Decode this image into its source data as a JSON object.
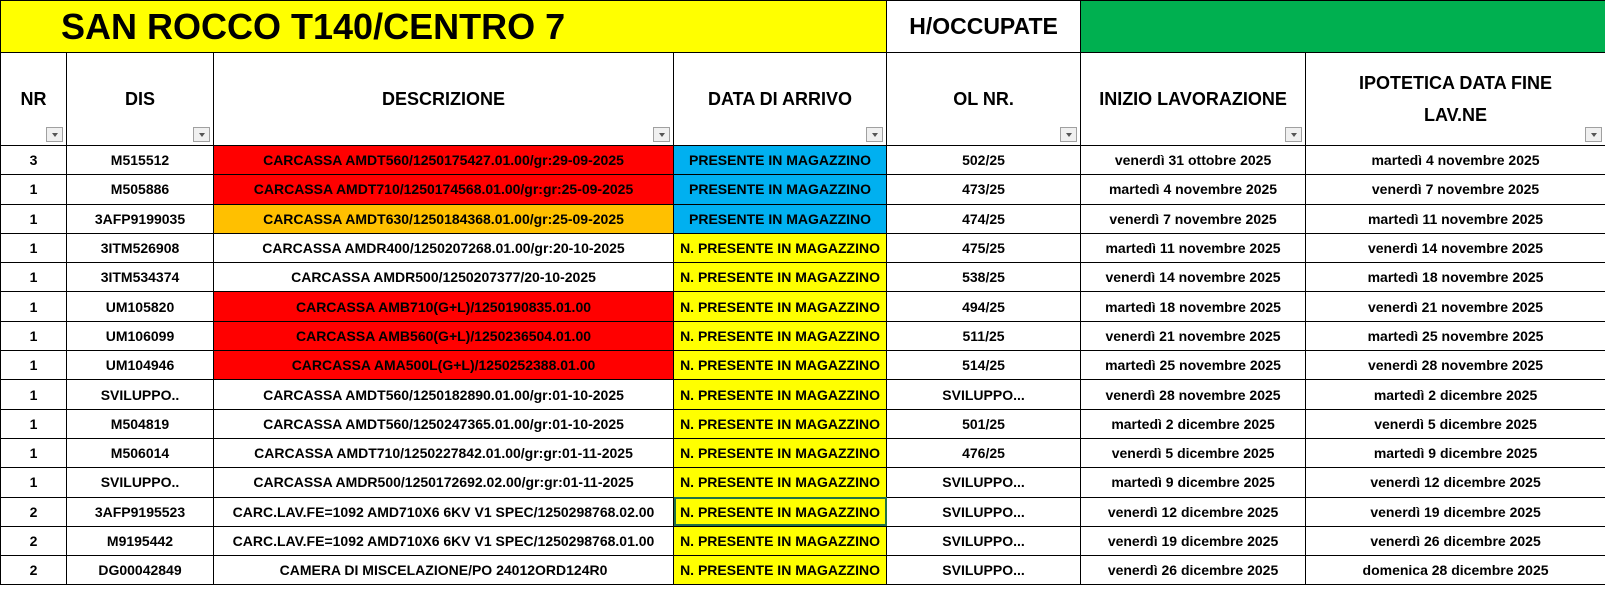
{
  "title": "SAN ROCCO T140/CENTRO 7",
  "occupate_label": "H/OCCUPATE",
  "colors": {
    "title_bg": "#ffff00",
    "occupate_bar": "#00b050",
    "red": "#ff0000",
    "orange": "#ffc000",
    "blue": "#00b0f0",
    "yellow": "#ffff00"
  },
  "headers": [
    "NR",
    "DIS",
    "DESCRIZIONE",
    "DATA DI ARRIVO",
    "OL NR.",
    "INIZIO LAVORAZIONE",
    "IPOTETICA DATA FINE LAV.NE"
  ],
  "rows": [
    {
      "nr": "3",
      "dis": "M515512",
      "desc": "CARCASSA AMDT560/1250175427.01.00/gr:29-09-2025",
      "desc_color": "red",
      "arrivo": "PRESENTE IN MAGAZZINO",
      "arrivo_color": "blue",
      "ol": "502/25",
      "inizio": "venerdì 31 ottobre 2025",
      "fine": "martedì 4 novembre 2025"
    },
    {
      "nr": "1",
      "dis": "M505886",
      "desc": "CARCASSA AMDT710/1250174568.01.00/gr:gr:25-09-2025",
      "desc_color": "red",
      "arrivo": "PRESENTE IN MAGAZZINO",
      "arrivo_color": "blue",
      "ol": "473/25",
      "inizio": "martedì 4 novembre 2025",
      "fine": "venerdì 7 novembre 2025"
    },
    {
      "nr": "1",
      "dis": "3AFP9199035",
      "desc": "CARCASSA AMDT630/1250184368.01.00/gr:25-09-2025",
      "desc_color": "orange",
      "arrivo": "PRESENTE IN MAGAZZINO",
      "arrivo_color": "blue",
      "ol": "474/25",
      "inizio": "venerdì 7 novembre 2025",
      "fine": "martedì 11 novembre 2025"
    },
    {
      "nr": "1",
      "dis": "3ITM526908",
      "desc": "CARCASSA AMDR400/1250207268.01.00/gr:20-10-2025",
      "desc_color": "",
      "arrivo": "N. PRESENTE IN MAGAZZINO",
      "arrivo_color": "yellow",
      "ol": "475/25",
      "inizio": "martedì 11 novembre 2025",
      "fine": "venerdì 14 novembre 2025"
    },
    {
      "nr": "1",
      "dis": "3ITM534374",
      "desc": "CARCASSA AMDR500/1250207377/20-10-2025",
      "desc_color": "",
      "arrivo": "N. PRESENTE IN MAGAZZINO",
      "arrivo_color": "yellow",
      "ol": "538/25",
      "inizio": "venerdì 14 novembre 2025",
      "fine": "martedì 18 novembre 2025"
    },
    {
      "nr": "1",
      "dis": "UM105820",
      "desc": "CARCASSA AMB710(G+L)/1250190835.01.00",
      "desc_color": "red",
      "arrivo": "N. PRESENTE IN MAGAZZINO",
      "arrivo_color": "yellow",
      "ol": "494/25",
      "inizio": "martedì 18 novembre 2025",
      "fine": "venerdì 21 novembre 2025"
    },
    {
      "nr": "1",
      "dis": "UM106099",
      "desc": "CARCASSA AMB560(G+L)/1250236504.01.00",
      "desc_color": "red",
      "arrivo": "N. PRESENTE IN MAGAZZINO",
      "arrivo_color": "yellow",
      "ol": "511/25",
      "inizio": "venerdì 21 novembre 2025",
      "fine": "martedì 25 novembre 2025"
    },
    {
      "nr": "1",
      "dis": "UM104946",
      "desc": "CARCASSA AMA500L(G+L)/1250252388.01.00",
      "desc_color": "red",
      "arrivo": "N. PRESENTE IN MAGAZZINO",
      "arrivo_color": "yellow",
      "ol": "514/25",
      "inizio": "martedì 25 novembre 2025",
      "fine": "venerdì 28 novembre 2025"
    },
    {
      "nr": "1",
      "dis": "SVILUPPO..",
      "desc": "CARCASSA AMDT560/1250182890.01.00/gr:01-10-2025",
      "desc_color": "",
      "arrivo": "N. PRESENTE IN MAGAZZINO",
      "arrivo_color": "yellow",
      "ol": "SVILUPPO...",
      "inizio": "venerdì 28 novembre 2025",
      "fine": "martedì 2 dicembre 2025"
    },
    {
      "nr": "1",
      "dis": "M504819",
      "desc": "CARCASSA AMDT560/1250247365.01.00/gr:01-10-2025",
      "desc_color": "",
      "arrivo": "N. PRESENTE IN MAGAZZINO",
      "arrivo_color": "yellow",
      "ol": "501/25",
      "inizio": "martedì 2 dicembre 2025",
      "fine": "venerdì 5 dicembre 2025"
    },
    {
      "nr": "1",
      "dis": "M506014",
      "desc": "CARCASSA AMDT710/1250227842.01.00/gr:gr:01-11-2025",
      "desc_color": "",
      "arrivo": "N. PRESENTE IN MAGAZZINO",
      "arrivo_color": "yellow",
      "ol": "476/25",
      "inizio": "venerdì 5 dicembre 2025",
      "fine": "martedì 9 dicembre 2025"
    },
    {
      "nr": "1",
      "dis": "SVILUPPO..",
      "desc": "CARCASSA AMDR500/1250172692.02.00/gr:gr:01-11-2025",
      "desc_color": "",
      "arrivo": "N. PRESENTE IN MAGAZZINO",
      "arrivo_color": "yellow",
      "ol": "SVILUPPO...",
      "inizio": "martedì 9 dicembre 2025",
      "fine": "venerdì 12 dicembre 2025"
    },
    {
      "nr": "2",
      "dis": "3AFP9195523",
      "desc": "CARC.LAV.FE=1092 AMD710X6 6KV V1 SPEC/1250298768.02.00",
      "desc_color": "",
      "arrivo": "N. PRESENTE IN MAGAZZINO",
      "arrivo_color": "yellow",
      "ol": "SVILUPPO...",
      "inizio": "venerdì 12 dicembre 2025",
      "fine": "venerdì 19 dicembre 2025"
    },
    {
      "nr": "2",
      "dis": "M9195442",
      "desc": "CARC.LAV.FE=1092 AMD710X6 6KV V1 SPEC/1250298768.01.00",
      "desc_color": "",
      "arrivo": "N. PRESENTE IN MAGAZZINO",
      "arrivo_color": "yellow",
      "ol": "SVILUPPO...",
      "inizio": "venerdì 19 dicembre 2025",
      "fine": "venerdì 26 dicembre 2025"
    },
    {
      "nr": "2",
      "dis": "DG00042849",
      "desc": "CAMERA DI MISCELAZIONE/PO 24012ORD124R0",
      "desc_color": "",
      "arrivo": "N. PRESENTE IN MAGAZZINO",
      "arrivo_color": "yellow",
      "ol": "SVILUPPO...",
      "inizio": "venerdì 26 dicembre 2025",
      "fine": "domenica 28 dicembre 2025"
    }
  ]
}
